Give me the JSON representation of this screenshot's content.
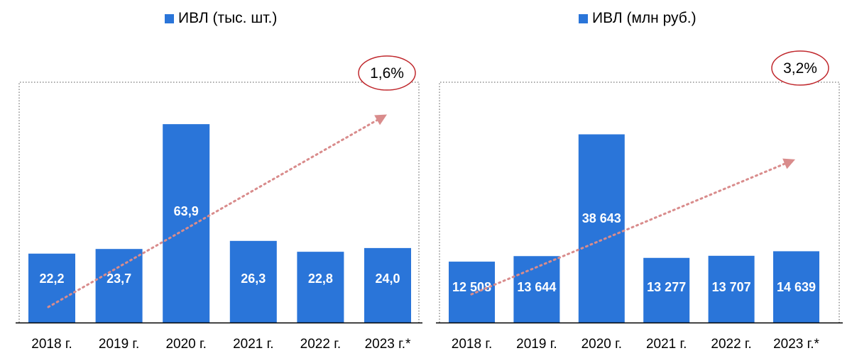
{
  "chart_data": [
    {
      "type": "bar",
      "legend": "ИВЛ (тыс. шт.)",
      "categories": [
        "2018 г.",
        "2019 г.",
        "2020 г.",
        "2021 г.",
        "2022 г.",
        "2023 г.*"
      ],
      "values": [
        22.2,
        23.7,
        63.9,
        26.3,
        22.8,
        24.0
      ],
      "value_labels": [
        "22,2",
        "23,7",
        "63,9",
        "26,3",
        "22,8",
        "24,0"
      ],
      "ylim": [
        0,
        77.4
      ],
      "trend": {
        "from_value": 5.0,
        "to_value": 67.0
      },
      "cagr_label": "1,6%",
      "colors": {
        "bar": "#2a75d9",
        "trend": "#d98c8c",
        "ellipse": "#c0282d"
      }
    },
    {
      "type": "bar",
      "legend": "ИВЛ (млн руб.)",
      "categories": [
        "2018 г.",
        "2019 г.",
        "2020 г.",
        "2021 г.",
        "2022 г.",
        "2023 г.*"
      ],
      "values": [
        12508,
        13644,
        38643,
        13277,
        13707,
        14639
      ],
      "value_labels": [
        "12 508",
        "13 644",
        "38 643",
        "13 277",
        "13 707",
        "14 639"
      ],
      "ylim": [
        0,
        49340
      ],
      "trend": {
        "from_value": 5800,
        "to_value": 33500
      },
      "cagr_label": "3,2%",
      "colors": {
        "bar": "#2a75d9",
        "trend": "#d98c8c",
        "ellipse": "#c0282d"
      }
    }
  ]
}
